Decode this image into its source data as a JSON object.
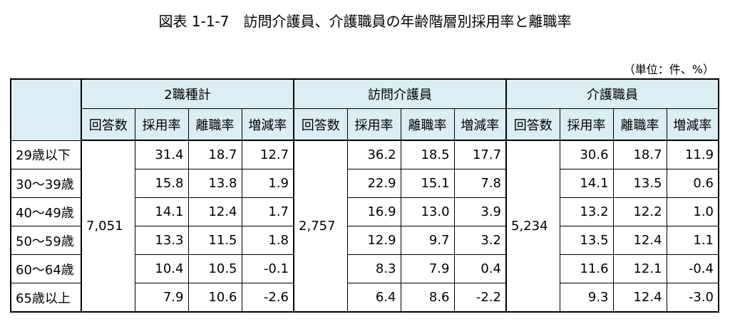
{
  "title": "図表 1-1-7　訪問介護員、介護職員の年齢階層別採用率と離職率",
  "unit": "（単位：件、%）",
  "table": {
    "groups": [
      {
        "name": "2職種計",
        "columns": [
          "回答数",
          "採用率",
          "離職率",
          "増減率"
        ],
        "respondents": "7,051"
      },
      {
        "name": "訪問介護員",
        "columns": [
          "回答数",
          "採用率",
          "離職率",
          "増減率"
        ],
        "respondents": "2,757"
      },
      {
        "name": "介護職員",
        "columns": [
          "回答数",
          "採用率",
          "離職率",
          "増減率"
        ],
        "respondents": "5,234"
      }
    ],
    "rows": [
      {
        "label": "29歳以下",
        "values": [
          [
            "31.4",
            "18.7",
            "12.7"
          ],
          [
            "36.2",
            "18.5",
            "17.7"
          ],
          [
            "30.6",
            "18.7",
            "11.9"
          ]
        ]
      },
      {
        "label": "30～39歳",
        "values": [
          [
            "15.8",
            "13.8",
            "1.9"
          ],
          [
            "22.9",
            "15.1",
            "7.8"
          ],
          [
            "14.1",
            "13.5",
            "0.6"
          ]
        ]
      },
      {
        "label": "40～49歳",
        "values": [
          [
            "14.1",
            "12.4",
            "1.7"
          ],
          [
            "16.9",
            "13.0",
            "3.9"
          ],
          [
            "13.2",
            "12.2",
            "1.0"
          ]
        ]
      },
      {
        "label": "50～59歳",
        "values": [
          [
            "13.3",
            "11.5",
            "1.8"
          ],
          [
            "12.9",
            "9.7",
            "3.2"
          ],
          [
            "13.5",
            "12.4",
            "1.1"
          ]
        ]
      },
      {
        "label": "60～64歳",
        "values": [
          [
            "10.4",
            "10.5",
            "-0.1"
          ],
          [
            "8.3",
            "7.9",
            "0.4"
          ],
          [
            "11.6",
            "12.1",
            "-0.4"
          ]
        ]
      },
      {
        "label": "65歳以上",
        "values": [
          [
            "7.9",
            "10.6",
            "-2.6"
          ],
          [
            "6.4",
            "8.6",
            "-2.2"
          ],
          [
            "9.3",
            "12.4",
            "-3.0"
          ]
        ]
      }
    ]
  }
}
